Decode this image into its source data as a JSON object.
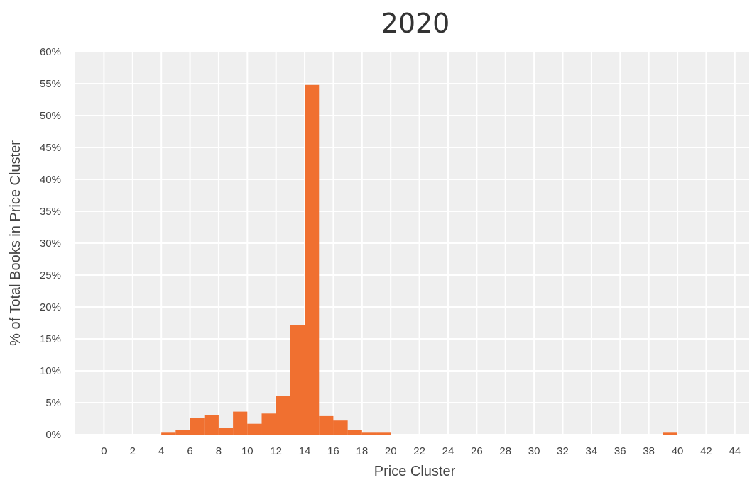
{
  "chart_data": {
    "type": "bar",
    "title": "2020",
    "xlabel": "Price Cluster",
    "ylabel": "% of Total Books in Price Cluster",
    "bar_color": "#f07030",
    "plot_background": "#efefef",
    "grid": true,
    "x_ticks": [
      "0",
      "2",
      "4",
      "6",
      "8",
      "10",
      "12",
      "14",
      "16",
      "18",
      "20",
      "22",
      "24",
      "26",
      "28",
      "30",
      "32",
      "34",
      "36",
      "38",
      "40",
      "42",
      "44"
    ],
    "y_ticks": [
      "0%",
      "5%",
      "10%",
      "15%",
      "20%",
      "25%",
      "30%",
      "35%",
      "40%",
      "45%",
      "50%",
      "55%",
      "60%"
    ],
    "xlim": [
      -2,
      45
    ],
    "ylim": [
      0,
      60
    ],
    "bar_width": 1,
    "x": [
      4,
      5,
      6,
      7,
      8,
      9,
      10,
      11,
      12,
      13,
      14,
      15,
      16,
      17,
      18,
      19,
      39
    ],
    "values": [
      0.3,
      0.7,
      2.6,
      3.0,
      1.0,
      3.6,
      1.7,
      3.3,
      6.0,
      17.2,
      54.8,
      2.9,
      2.2,
      0.7,
      0.3,
      0.3,
      0.3
    ]
  }
}
